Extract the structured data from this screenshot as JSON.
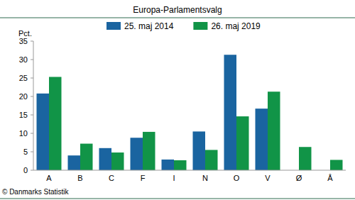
{
  "chart_data": {
    "type": "bar",
    "title": "Europa-Parlamentsvalg",
    "y_label": "Pct.",
    "source": "© Danmarks Statistik",
    "categories": [
      "A",
      "B",
      "C",
      "F",
      "I",
      "N",
      "O",
      "V",
      "Ø",
      "Å"
    ],
    "series": [
      {
        "name": "25. maj 2014",
        "color": "#1a64a0",
        "values": [
          20.8,
          4.0,
          6.0,
          8.8,
          2.9,
          10.5,
          31.3,
          16.7,
          null,
          null
        ]
      },
      {
        "name": "26. maj 2019",
        "color": "#119447",
        "values": [
          25.3,
          7.2,
          4.8,
          10.4,
          2.7,
          5.5,
          14.6,
          21.3,
          6.3,
          2.8
        ]
      }
    ],
    "ylim": [
      0,
      35
    ],
    "yticks": [
      0,
      5,
      10,
      15,
      20,
      25,
      30,
      35
    ],
    "grid": false,
    "legend": "top"
  }
}
